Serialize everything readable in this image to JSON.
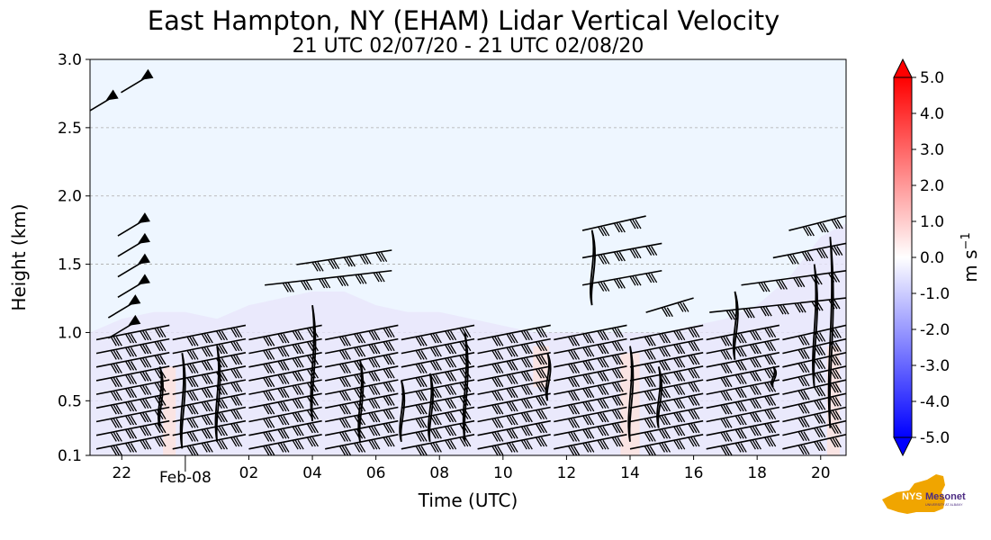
{
  "chart_data": {
    "type": "heatmap",
    "title": "East Hampton, NY (EHAM) Lidar Vertical Velocity",
    "subtitle": "21 UTC 02/07/20 - 21 UTC 02/08/20",
    "xlabel": "Time (UTC)",
    "ylabel": "Height (km)",
    "xlim": [
      21,
      44.8
    ],
    "ylim": [
      0.1,
      3.0
    ],
    "x_ticks": [
      {
        "value": 22,
        "label": "22"
      },
      {
        "value": 26,
        "label": "02"
      },
      {
        "value": 28,
        "label": "04"
      },
      {
        "value": 30,
        "label": "06"
      },
      {
        "value": 32,
        "label": "08"
      },
      {
        "value": 34,
        "label": "10"
      },
      {
        "value": 36,
        "label": "12"
      },
      {
        "value": 38,
        "label": "14"
      },
      {
        "value": 40,
        "label": "16"
      },
      {
        "value": 42,
        "label": "18"
      },
      {
        "value": 44,
        "label": "20"
      }
    ],
    "x_minor_label": {
      "value": 24,
      "label": "Feb-08"
    },
    "y_ticks": [
      {
        "value": 0.1,
        "label": "0.1"
      },
      {
        "value": 0.5,
        "label": "0.5"
      },
      {
        "value": 1.0,
        "label": "1.0"
      },
      {
        "value": 1.5,
        "label": "1.5"
      },
      {
        "value": 2.0,
        "label": "2.0"
      },
      {
        "value": 2.5,
        "label": "2.5"
      },
      {
        "value": 3.0,
        "label": "3.0"
      }
    ],
    "grid": "horizontal dashed",
    "colorbar": {
      "label": "m s",
      "label_superscript": "−1",
      "min": -5.0,
      "max": 5.0,
      "extend": "both",
      "ticks": [
        {
          "value": 5.0,
          "label": "5.0"
        },
        {
          "value": 4.0,
          "label": "4.0"
        },
        {
          "value": 3.0,
          "label": "3.0"
        },
        {
          "value": 2.0,
          "label": "2.0"
        },
        {
          "value": 1.0,
          "label": "1.0"
        },
        {
          "value": 0.0,
          "label": "0.0"
        },
        {
          "value": -1.0,
          "label": "-1.0"
        },
        {
          "value": -2.0,
          "label": "-2.0"
        },
        {
          "value": -3.0,
          "label": "-3.0"
        },
        {
          "value": -4.0,
          "label": "-4.0"
        },
        {
          "value": -5.0,
          "label": "-5.0"
        }
      ],
      "colors": {
        "negative": "#0000ff",
        "neutral": "#ffffff",
        "positive": "#ff0000"
      }
    },
    "background_value_color": "#eef6ff",
    "mixed_layer_top_km": [
      {
        "x": 21.0,
        "y": 1.0
      },
      {
        "x": 22.0,
        "y": 1.1
      },
      {
        "x": 23.0,
        "y": 1.15
      },
      {
        "x": 24.0,
        "y": 1.15
      },
      {
        "x": 25.0,
        "y": 1.1
      },
      {
        "x": 26.0,
        "y": 1.2
      },
      {
        "x": 27.0,
        "y": 1.25
      },
      {
        "x": 28.0,
        "y": 1.3
      },
      {
        "x": 29.0,
        "y": 1.3
      },
      {
        "x": 30.0,
        "y": 1.2
      },
      {
        "x": 31.0,
        "y": 1.15
      },
      {
        "x": 32.0,
        "y": 1.15
      },
      {
        "x": 33.0,
        "y": 1.1
      },
      {
        "x": 34.0,
        "y": 1.05
      },
      {
        "x": 35.0,
        "y": 1.0
      },
      {
        "x": 36.0,
        "y": 1.0
      },
      {
        "x": 37.0,
        "y": 1.0
      },
      {
        "x": 38.0,
        "y": 1.0
      },
      {
        "x": 39.0,
        "y": 1.0
      },
      {
        "x": 40.0,
        "y": 1.05
      },
      {
        "x": 41.0,
        "y": 1.1
      },
      {
        "x": 42.0,
        "y": 1.2
      },
      {
        "x": 43.0,
        "y": 1.4
      },
      {
        "x": 44.0,
        "y": 1.7
      },
      {
        "x": 44.8,
        "y": 1.8
      }
    ],
    "updraft_patches": [
      {
        "x": 23.5,
        "y0": 0.1,
        "y1": 0.75,
        "w": 0.4
      },
      {
        "x": 38.0,
        "y0": 0.1,
        "y1": 0.85,
        "w": 0.6
      },
      {
        "x": 44.4,
        "y0": 0.1,
        "y1": 0.9,
        "w": 0.4
      },
      {
        "x": 35.2,
        "y0": 0.6,
        "y1": 0.9,
        "w": 0.5
      }
    ],
    "wind_barbs": {
      "upper_flags": [
        {
          "x": 21.5,
          "y": 2.7
        },
        {
          "x": 22.6,
          "y": 2.85
        },
        {
          "x": 22.5,
          "y": 1.8
        },
        {
          "x": 22.5,
          "y": 1.65
        },
        {
          "x": 22.5,
          "y": 1.5
        },
        {
          "x": 22.5,
          "y": 1.35
        },
        {
          "x": 22.2,
          "y": 1.2
        },
        {
          "x": 22.2,
          "y": 1.05
        }
      ],
      "row_levels_km": [
        0.2,
        0.3,
        0.4,
        0.5,
        0.6,
        0.7,
        0.8,
        0.9,
        1.0
      ],
      "upper_segments": [
        {
          "x0": 27.5,
          "x1": 30.5,
          "y": 1.55
        },
        {
          "x0": 26.5,
          "x1": 30.5,
          "y": 1.4
        },
        {
          "x0": 36.5,
          "x1": 38.5,
          "y": 1.8
        },
        {
          "x0": 36.5,
          "x1": 39.0,
          "y": 1.6
        },
        {
          "x0": 36.5,
          "x1": 39.0,
          "y": 1.4
        },
        {
          "x0": 38.5,
          "x1": 40.0,
          "y": 1.2
        },
        {
          "x0": 43.0,
          "x1": 44.8,
          "y": 1.8
        },
        {
          "x0": 42.5,
          "x1": 44.8,
          "y": 1.6
        },
        {
          "x0": 41.5,
          "x1": 44.8,
          "y": 1.4
        },
        {
          "x0": 40.5,
          "x1": 44.8,
          "y": 1.2
        }
      ]
    },
    "contours": [
      {
        "x": 23.2,
        "y0": 0.3,
        "y1": 0.75
      },
      {
        "x": 23.9,
        "y0": 0.15,
        "y1": 0.85
      },
      {
        "x": 25.0,
        "y0": 0.2,
        "y1": 0.9
      },
      {
        "x": 28.0,
        "y0": 0.35,
        "y1": 1.2
      },
      {
        "x": 29.5,
        "y0": 0.2,
        "y1": 0.8
      },
      {
        "x": 30.8,
        "y0": 0.2,
        "y1": 0.65
      },
      {
        "x": 31.7,
        "y0": 0.2,
        "y1": 0.7
      },
      {
        "x": 32.8,
        "y0": 0.2,
        "y1": 1.0
      },
      {
        "x": 35.4,
        "y0": 0.5,
        "y1": 0.85
      },
      {
        "x": 36.8,
        "y0": 1.2,
        "y1": 1.75
      },
      {
        "x": 38.0,
        "y0": 0.2,
        "y1": 0.9
      },
      {
        "x": 38.9,
        "y0": 0.3,
        "y1": 0.75
      },
      {
        "x": 41.3,
        "y0": 0.8,
        "y1": 1.3
      },
      {
        "x": 42.5,
        "y0": 0.6,
        "y1": 0.75
      },
      {
        "x": 43.8,
        "y0": 0.6,
        "y1": 1.5
      },
      {
        "x": 44.3,
        "y0": 0.3,
        "y1": 1.7
      }
    ]
  },
  "logo": {
    "name": "NYS Mesonet",
    "line1": "NYS",
    "line2": "Mesonet",
    "line3": "UNIVERSITY AT ALBANY",
    "state_color": "#f0a500",
    "text_color": "#4b2a82"
  }
}
